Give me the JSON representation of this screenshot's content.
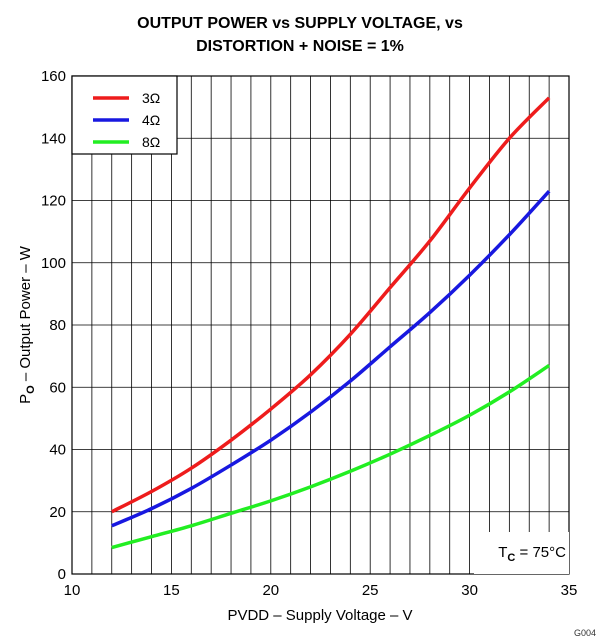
{
  "chart_data": {
    "type": "line",
    "title_line1": "OUTPUT POWER vs SUPPLY VOLTAGE, vs",
    "title_line2": "DISTORTION + NOISE = 1%",
    "xlabel": "PVDD – Supply Voltage – V",
    "ylabel_main": "P",
    "ylabel_sub": "O",
    "ylabel_rest": " – Output Power – W",
    "xlim": [
      10,
      35
    ],
    "ylim": [
      0,
      160
    ],
    "x_ticks": [
      10,
      15,
      20,
      25,
      30,
      35
    ],
    "y_ticks": [
      0,
      20,
      40,
      60,
      80,
      100,
      120,
      140,
      160
    ],
    "grid": true,
    "legend_position": "top-left",
    "annotation_main": "T",
    "annotation_sub": "C",
    "annotation_rest": " = 75°C",
    "figure_id": "G004",
    "series": [
      {
        "name": "3Ω",
        "color": "#ee1c1c",
        "x": [
          12,
          14,
          16,
          18,
          20,
          22,
          24,
          26,
          28,
          30,
          32,
          34
        ],
        "y": [
          20,
          26.5,
          34,
          43,
          53,
          64,
          77,
          92,
          107,
          124,
          140,
          153
        ]
      },
      {
        "name": "4Ω",
        "color": "#1818e0",
        "x": [
          12,
          14,
          16,
          18,
          20,
          22,
          24,
          26,
          28,
          30,
          32,
          34
        ],
        "y": [
          15.5,
          21,
          27.5,
          35,
          43,
          52,
          62,
          73,
          84,
          96,
          109,
          123
        ]
      },
      {
        "name": "8Ω",
        "color": "#22ee22",
        "x": [
          12,
          14,
          16,
          18,
          20,
          22,
          24,
          26,
          28,
          30,
          32,
          34
        ],
        "y": [
          8.5,
          12,
          15.5,
          19.5,
          23.5,
          28,
          33,
          38.5,
          44.5,
          51,
          58.5,
          67
        ]
      }
    ]
  }
}
